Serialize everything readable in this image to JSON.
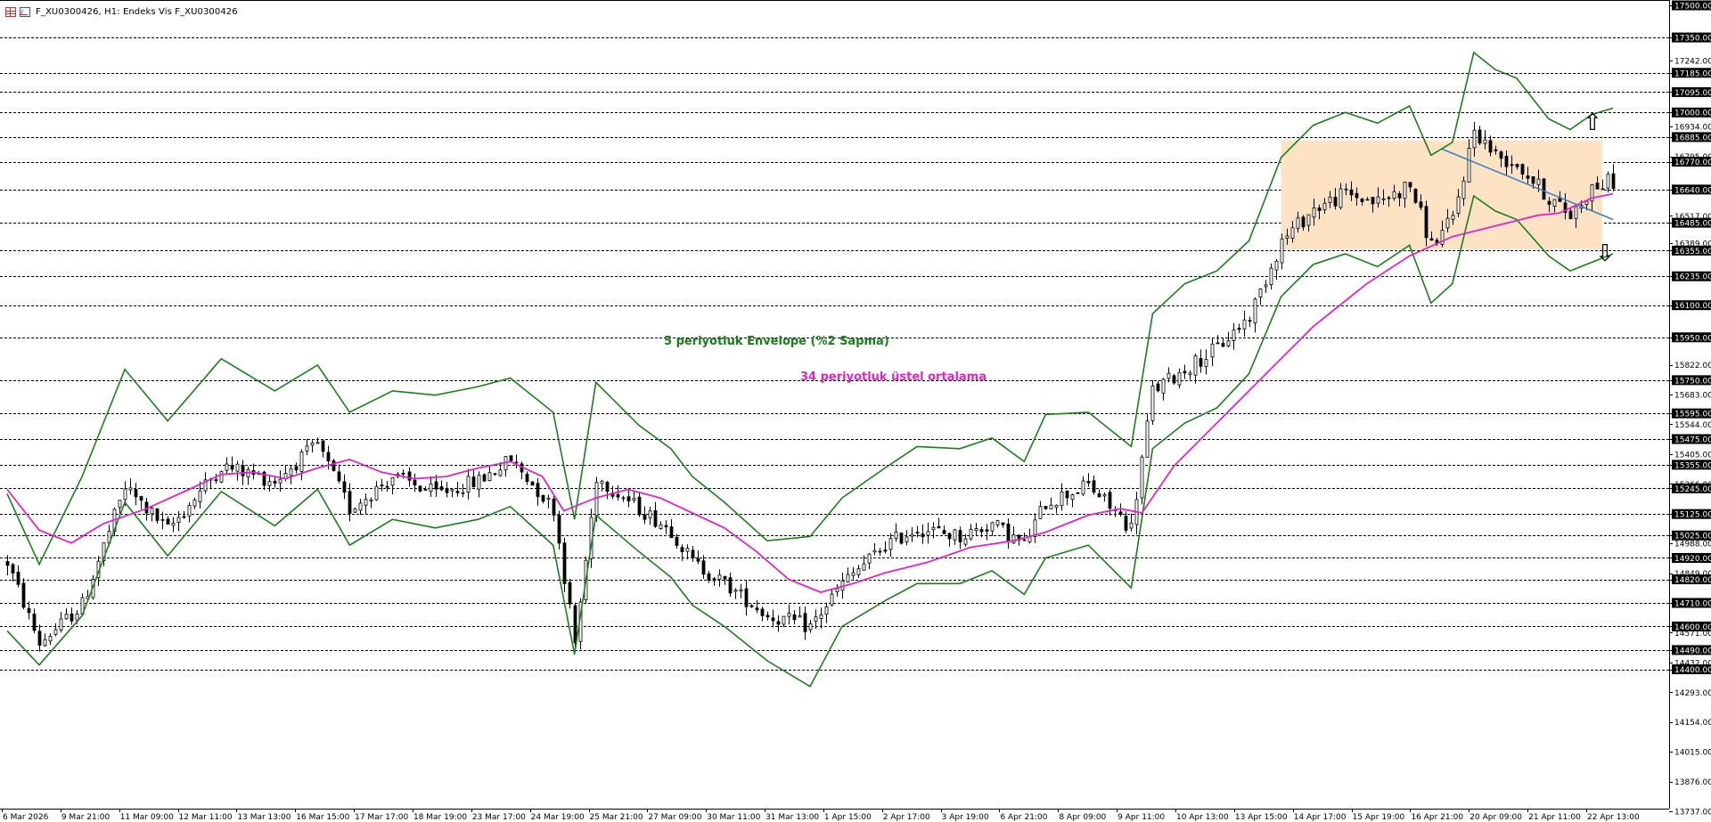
{
  "header": {
    "title": "F_XU0300426, H1:  Endeks Vis F_XU0300426",
    "icons": [
      "grid-icon",
      "chart-icon"
    ]
  },
  "annotations": {
    "envelope_label": "5 periyotluk Envelope (%2 Sapma)",
    "ema_label": "34 periyotluk üstel ortalama",
    "envelope_color": "#1a7f1a",
    "ema_color": "#e026c8",
    "box_color": "#fde3c4",
    "trendline_color": "#3a7fc2",
    "up_arrow": "⇧",
    "down_arrow": "⇩"
  },
  "chart_data": {
    "type": "candlestick",
    "title": "F_XU0300426, H1:  Endeks Vis F_XU0300426",
    "ylim": [
      13660,
      17500
    ],
    "y_ticks": [
      "17500.00",
      "17350.00",
      "17242.00",
      "17185.00",
      "17095.00",
      "17000.00",
      "16934.00",
      "16885.00",
      "16795.00",
      "16770.00",
      "16640.00",
      "16517.00",
      "16485.00",
      "16389.00",
      "16355.00",
      "16235.00",
      "16100.00",
      "15950.00",
      "15822.00",
      "15750.00",
      "15683.00",
      "15595.00",
      "15544.00",
      "15475.00",
      "15405.00",
      "15355.00",
      "15266.00",
      "15245.00",
      "15125.00",
      "15025.00",
      "14988.00",
      "14920.00",
      "14849.00",
      "14820.00",
      "14710.00",
      "14600.00",
      "14571.00",
      "14490.00",
      "14432.00",
      "14400.00",
      "14293.00",
      "14154.00",
      "14015.00",
      "13876.00",
      "13737.00"
    ],
    "horizontal_levels": [
      17350,
      17185,
      17095,
      17000,
      16885,
      16770,
      16640,
      16485,
      16355,
      16235,
      16100,
      15950,
      15750,
      15595,
      15475,
      15355,
      15245,
      15125,
      15025,
      14920,
      14820,
      14710,
      14600,
      14490,
      14400
    ],
    "highlighted_levels": [
      17500,
      17350,
      17185,
      17095,
      17000,
      16885,
      16770,
      16640,
      16485,
      16355,
      16235,
      16100,
      15950,
      15750,
      15595,
      15475,
      15355,
      15245,
      15125,
      15025,
      14920,
      14820,
      14710,
      14600,
      14490,
      14400
    ],
    "x_labels": [
      "6 Mar 2026",
      "9 Mar 21:00",
      "11 Mar 09:00",
      "12 Mar 11:00",
      "13 Mar 13:00",
      "16 Mar 15:00",
      "17 Mar 17:00",
      "18 Mar 19:00",
      "23 Mar 17:00",
      "24 Mar 19:00",
      "25 Mar 21:00",
      "27 Mar 09:00",
      "30 Mar 11:00",
      "31 Mar 13:00",
      "1 Apr 15:00",
      "2 Apr 17:00",
      "3 Apr 19:00",
      "6 Apr 21:00",
      "8 Apr 09:00",
      "9 Apr 11:00",
      "10 Apr 13:00",
      "13 Apr 15:00",
      "14 Apr 17:00",
      "15 Apr 19:00",
      "16 Apr 21:00",
      "20 Apr 09:00",
      "21 Apr 11:00",
      "22 Apr 13:00"
    ],
    "close_path": [
      [
        0,
        14900
      ],
      [
        6,
        14520
      ],
      [
        14,
        14700
      ],
      [
        22,
        15250
      ],
      [
        30,
        15050
      ],
      [
        40,
        15350
      ],
      [
        50,
        15280
      ],
      [
        58,
        15450
      ],
      [
        64,
        15150
      ],
      [
        72,
        15300
      ],
      [
        80,
        15220
      ],
      [
        88,
        15280
      ],
      [
        94,
        15380
      ],
      [
        102,
        15150
      ],
      [
        106,
        14520
      ],
      [
        110,
        15300
      ],
      [
        118,
        15150
      ],
      [
        124,
        15050
      ],
      [
        128,
        14900
      ],
      [
        134,
        14800
      ],
      [
        142,
        14650
      ],
      [
        150,
        14600
      ],
      [
        156,
        14800
      ],
      [
        164,
        14980
      ],
      [
        170,
        15060
      ],
      [
        178,
        15020
      ],
      [
        184,
        15080
      ],
      [
        190,
        14980
      ],
      [
        194,
        15180
      ],
      [
        202,
        15260
      ],
      [
        210,
        15060
      ],
      [
        214,
        15700
      ],
      [
        220,
        15800
      ],
      [
        226,
        15900
      ],
      [
        232,
        16050
      ],
      [
        238,
        16400
      ],
      [
        244,
        16550
      ],
      [
        250,
        16620
      ],
      [
        256,
        16580
      ],
      [
        262,
        16660
      ],
      [
        266,
        16380
      ],
      [
        270,
        16500
      ],
      [
        274,
        16920
      ],
      [
        278,
        16800
      ],
      [
        282,
        16760
      ],
      [
        288,
        16600
      ],
      [
        292,
        16520
      ],
      [
        296,
        16650
      ],
      [
        300,
        16680
      ]
    ],
    "series": [
      {
        "name": "5 periyotluk Envelope (%2 Sapma)",
        "upper_path": [
          [
            0,
            15220
          ],
          [
            6,
            14890
          ],
          [
            14,
            15300
          ],
          [
            22,
            15800
          ],
          [
            30,
            15560
          ],
          [
            40,
            15850
          ],
          [
            50,
            15700
          ],
          [
            58,
            15820
          ],
          [
            64,
            15600
          ],
          [
            72,
            15700
          ],
          [
            80,
            15680
          ],
          [
            88,
            15720
          ],
          [
            94,
            15760
          ],
          [
            102,
            15600
          ],
          [
            106,
            15100
          ],
          [
            110,
            15740
          ],
          [
            118,
            15540
          ],
          [
            124,
            15430
          ],
          [
            128,
            15300
          ],
          [
            134,
            15180
          ],
          [
            142,
            15000
          ],
          [
            150,
            15020
          ],
          [
            156,
            15200
          ],
          [
            164,
            15340
          ],
          [
            170,
            15440
          ],
          [
            178,
            15430
          ],
          [
            184,
            15480
          ],
          [
            190,
            15370
          ],
          [
            194,
            15590
          ],
          [
            202,
            15600
          ],
          [
            210,
            15440
          ],
          [
            214,
            16060
          ],
          [
            220,
            16200
          ],
          [
            226,
            16260
          ],
          [
            232,
            16400
          ],
          [
            238,
            16790
          ],
          [
            244,
            16940
          ],
          [
            250,
            17000
          ],
          [
            256,
            16950
          ],
          [
            262,
            17030
          ],
          [
            266,
            16800
          ],
          [
            270,
            16860
          ],
          [
            274,
            17280
          ],
          [
            278,
            17200
          ],
          [
            282,
            17160
          ],
          [
            288,
            16970
          ],
          [
            292,
            16920
          ],
          [
            296,
            16990
          ],
          [
            300,
            17020
          ]
        ],
        "lower_path": [
          [
            0,
            14580
          ],
          [
            6,
            14420
          ],
          [
            14,
            14650
          ],
          [
            22,
            15180
          ],
          [
            30,
            14930
          ],
          [
            40,
            15230
          ],
          [
            50,
            15070
          ],
          [
            58,
            15240
          ],
          [
            64,
            14980
          ],
          [
            72,
            15100
          ],
          [
            80,
            15060
          ],
          [
            88,
            15100
          ],
          [
            94,
            15160
          ],
          [
            102,
            14980
          ],
          [
            106,
            14470
          ],
          [
            110,
            15120
          ],
          [
            118,
            14950
          ],
          [
            124,
            14830
          ],
          [
            128,
            14700
          ],
          [
            134,
            14600
          ],
          [
            142,
            14440
          ],
          [
            150,
            14320
          ],
          [
            156,
            14600
          ],
          [
            164,
            14720
          ],
          [
            170,
            14800
          ],
          [
            178,
            14800
          ],
          [
            184,
            14860
          ],
          [
            190,
            14750
          ],
          [
            194,
            14920
          ],
          [
            202,
            14980
          ],
          [
            210,
            14780
          ],
          [
            214,
            15430
          ],
          [
            220,
            15550
          ],
          [
            226,
            15620
          ],
          [
            232,
            15780
          ],
          [
            238,
            16140
          ],
          [
            244,
            16290
          ],
          [
            250,
            16340
          ],
          [
            256,
            16280
          ],
          [
            262,
            16380
          ],
          [
            266,
            16110
          ],
          [
            270,
            16200
          ],
          [
            274,
            16610
          ],
          [
            278,
            16540
          ],
          [
            282,
            16500
          ],
          [
            288,
            16330
          ],
          [
            292,
            16260
          ],
          [
            296,
            16300
          ],
          [
            300,
            16340
          ]
        ]
      },
      {
        "name": "34 periyotluk üstel ortalama",
        "path": [
          [
            0,
            15240
          ],
          [
            6,
            15050
          ],
          [
            12,
            14990
          ],
          [
            18,
            15080
          ],
          [
            26,
            15150
          ],
          [
            34,
            15240
          ],
          [
            40,
            15310
          ],
          [
            46,
            15320
          ],
          [
            52,
            15290
          ],
          [
            58,
            15340
          ],
          [
            64,
            15380
          ],
          [
            70,
            15320
          ],
          [
            76,
            15290
          ],
          [
            82,
            15300
          ],
          [
            88,
            15340
          ],
          [
            94,
            15370
          ],
          [
            100,
            15300
          ],
          [
            104,
            15140
          ],
          [
            110,
            15200
          ],
          [
            116,
            15240
          ],
          [
            122,
            15200
          ],
          [
            128,
            15130
          ],
          [
            134,
            15060
          ],
          [
            140,
            14950
          ],
          [
            146,
            14820
          ],
          [
            152,
            14760
          ],
          [
            158,
            14800
          ],
          [
            164,
            14850
          ],
          [
            172,
            14900
          ],
          [
            180,
            14970
          ],
          [
            188,
            15000
          ],
          [
            194,
            15040
          ],
          [
            202,
            15120
          ],
          [
            208,
            15150
          ],
          [
            212,
            15130
          ],
          [
            218,
            15350
          ],
          [
            226,
            15550
          ],
          [
            236,
            15800
          ],
          [
            244,
            16000
          ],
          [
            254,
            16200
          ],
          [
            262,
            16330
          ],
          [
            270,
            16420
          ],
          [
            278,
            16470
          ],
          [
            286,
            16520
          ],
          [
            290,
            16530
          ],
          [
            296,
            16600
          ],
          [
            300,
            16620
          ]
        ]
      },
      {
        "name": "trend",
        "path": [
          [
            268,
            16830
          ],
          [
            300,
            16500
          ]
        ]
      }
    ],
    "range_box": {
      "x_start": 238,
      "x_end": 298,
      "y_low": 16360,
      "y_high": 16870
    },
    "grid": false
  }
}
